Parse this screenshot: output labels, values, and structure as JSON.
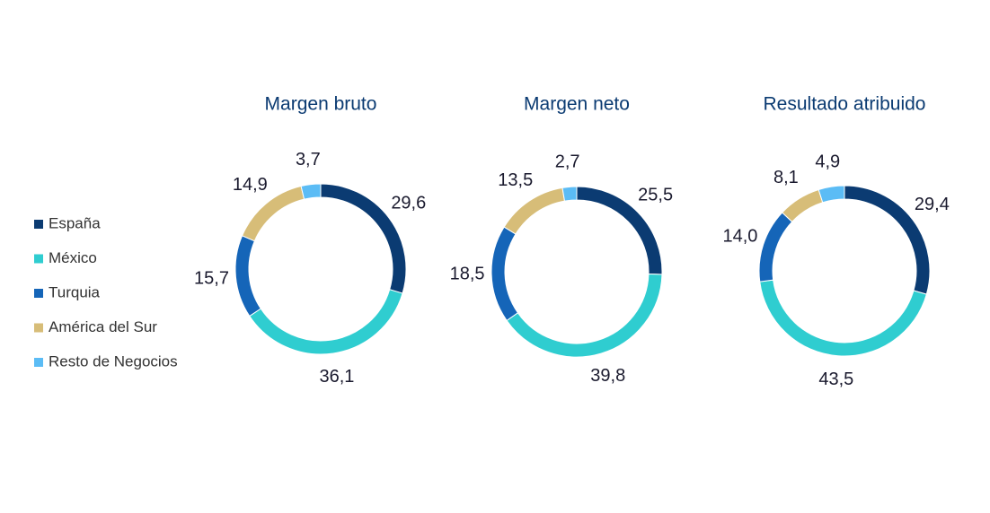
{
  "chart_data": {
    "type": "pie",
    "categories": [
      "España",
      "México",
      "Turquia",
      "América del Sur",
      "Resto de Negocios"
    ],
    "colors": [
      "#0b3b72",
      "#2fcdd0",
      "#1565b8",
      "#d7bd78",
      "#5bbcf5"
    ],
    "series": [
      {
        "name": "Margen bruto",
        "values": [
          29.6,
          36.1,
          15.7,
          14.9,
          3.7
        ],
        "value_labels": [
          "29,6",
          "36,1",
          "15,7",
          "14,9",
          "3,7"
        ]
      },
      {
        "name": "Margen neto",
        "values": [
          25.5,
          39.8,
          18.5,
          13.5,
          2.7
        ],
        "value_labels": [
          "25,5",
          "39,8",
          "18,5",
          "13,5",
          "2,7"
        ]
      },
      {
        "name": "Resultado atribuido",
        "values": [
          29.4,
          43.5,
          14.0,
          8.1,
          4.9
        ],
        "value_labels": [
          "29,4",
          "43,5",
          "14,0",
          "8,1",
          "4,9"
        ]
      }
    ]
  }
}
